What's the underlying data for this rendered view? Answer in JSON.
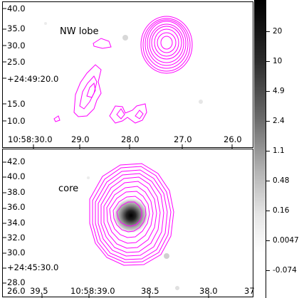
{
  "top_panel": {
    "label": "NW lobe",
    "dec_ticks": [
      "40.0",
      "35.0",
      "30.0",
      "25.0",
      "+24:49:20.0",
      "15.0",
      "10.0"
    ],
    "ra_ticks": [
      "10:58:30.0",
      "29.0",
      "28.0",
      "27.0",
      "26.0"
    ]
  },
  "bottom_panel": {
    "label": "core",
    "dec_ticks": [
      "42.0",
      "40.0",
      "38.0",
      "36.0",
      "34.0",
      "32.0",
      "30.0",
      "+24:45:30.0",
      "28.0",
      "26.0"
    ],
    "ra_ticks": [
      "39.5",
      "10:58:39.0",
      "38.5",
      "38.0",
      "37"
    ]
  },
  "colorbar": {
    "ticks": [
      "20",
      "10",
      "4.9",
      "2.4",
      "1.1",
      "0.48",
      "0.16",
      "0.0047",
      "-0.074"
    ]
  },
  "colors": {
    "contour": "#ff00ff",
    "background": "#ffffff",
    "frame": "#000000"
  }
}
